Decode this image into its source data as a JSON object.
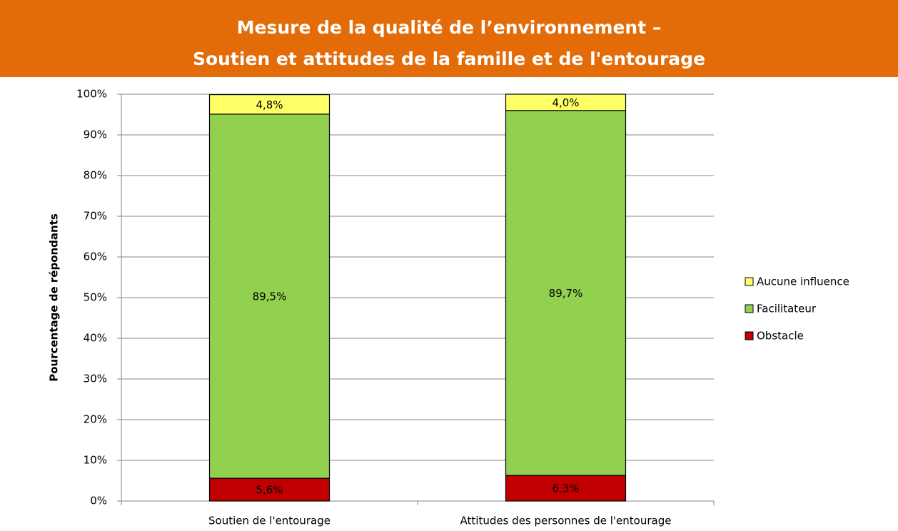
{
  "chart_data": {
    "type": "stacked_bar",
    "title": [
      "Mesure de la qualité de l’environnement –",
      "Soutien et attitudes de la famille et de l'entourage"
    ],
    "y_label": "Pourcentage de répondants",
    "categories": [
      "Soutien de l'entourage",
      "Attitudes des personnes de l'entourage"
    ],
    "series": [
      {
        "name": "Obstacle",
        "color": "#c00000",
        "values": [
          5.6,
          6.3
        ],
        "value_labels": [
          "5,6%",
          "6,3%"
        ]
      },
      {
        "name": "Facilitateur",
        "color": "#92d050",
        "values": [
          89.5,
          89.7
        ],
        "value_labels": [
          "89,5%",
          "89,7%"
        ]
      },
      {
        "name": "Aucune influence",
        "color": "#ffff66",
        "values": [
          4.8,
          4.0
        ],
        "value_labels": [
          "4,8%",
          "4,0%"
        ]
      }
    ],
    "ylim": [
      0,
      100
    ],
    "yticks": [
      {
        "value": 0,
        "label": "0%"
      },
      {
        "value": 10,
        "label": "10%"
      },
      {
        "value": 20,
        "label": "20%"
      },
      {
        "value": 30,
        "label": "30%"
      },
      {
        "value": 40,
        "label": "40%"
      },
      {
        "value": 50,
        "label": "50%"
      },
      {
        "value": 60,
        "label": "60%"
      },
      {
        "value": 70,
        "label": "70%"
      },
      {
        "value": 80,
        "label": "80%"
      },
      {
        "value": 90,
        "label": "90%"
      },
      {
        "value": 100,
        "label": "100%"
      }
    ],
    "grid": true,
    "legend": "right",
    "banner_color": "#e36c09"
  }
}
